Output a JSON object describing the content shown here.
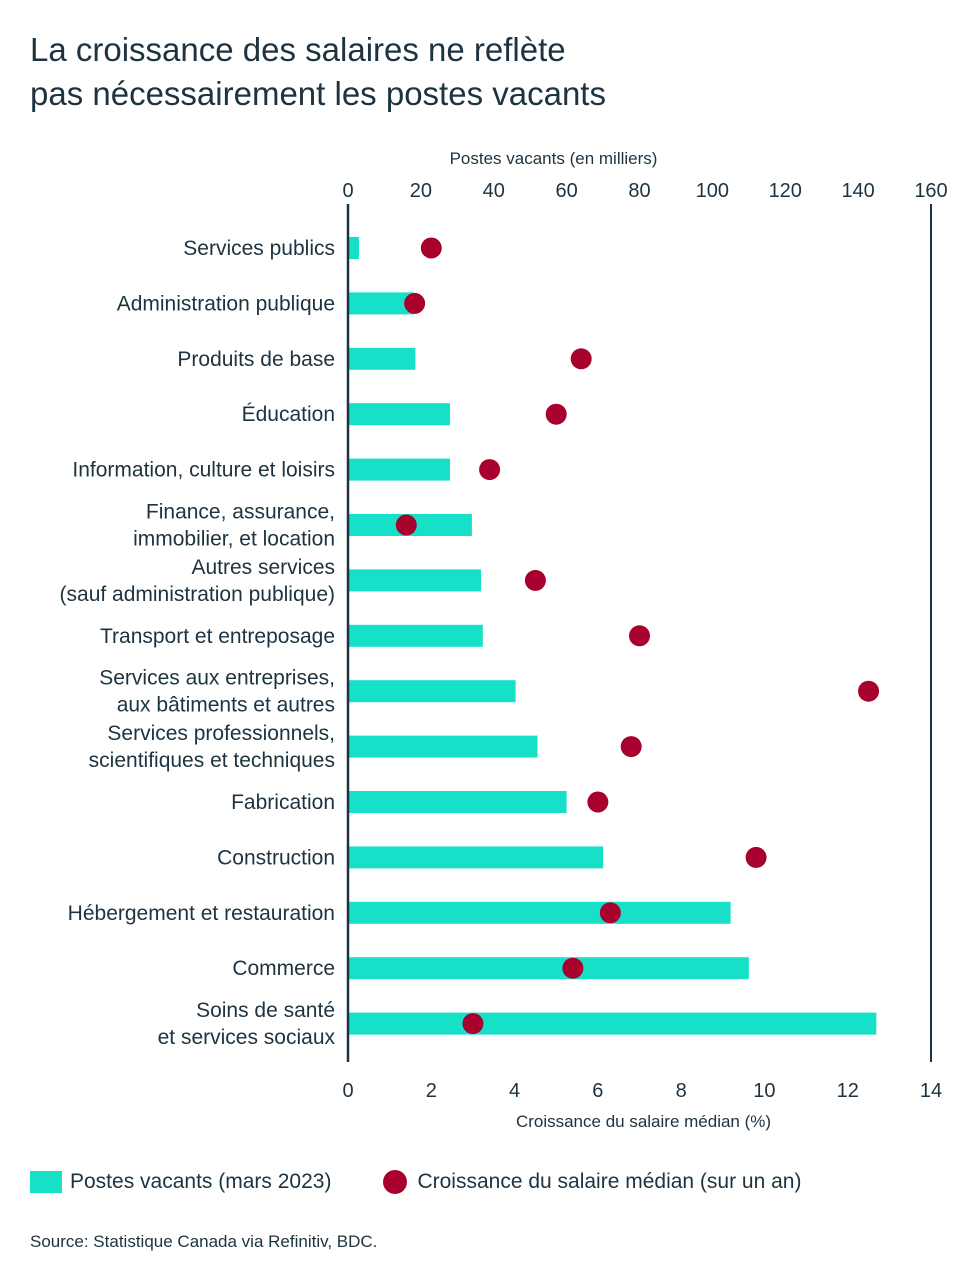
{
  "title_lines": [
    "La croissance des salaires ne reflète",
    "pas nécessairement les postes vacants"
  ],
  "source": "Source: Statistique Canada via Refinitiv, BDC.",
  "colors": {
    "bar": "#17e0c8",
    "dot": "#a8012e",
    "axis": "#1d3340",
    "text": "#1d3340"
  },
  "chart_data": {
    "type": "bar",
    "orientation": "horizontal",
    "categories": [
      [
        "Services publics"
      ],
      [
        "Administration publique"
      ],
      [
        "Produits de base"
      ],
      [
        "Éducation"
      ],
      [
        "Information, culture et loisirs"
      ],
      [
        "Finance, assurance,",
        "immobilier, et location"
      ],
      [
        "Autres services",
        "(sauf administration publique)"
      ],
      [
        "Transport et entreposage"
      ],
      [
        "Services aux entreprises,",
        "aux bâtiments et autres"
      ],
      [
        "Services professionnels,",
        "scientifiques et techniques"
      ],
      [
        "Fabrication"
      ],
      [
        "Construction"
      ],
      [
        "Hébergement et restauration"
      ],
      [
        "Commerce"
      ],
      [
        "Soins de santé",
        "et services sociaux"
      ]
    ],
    "series": [
      {
        "name": "Postes vacants (mars 2023)",
        "type": "bar",
        "axis": "top",
        "values": [
          3,
          18,
          18.5,
          28,
          28,
          34,
          36.5,
          37,
          46,
          52,
          60,
          70,
          105,
          110,
          145
        ]
      },
      {
        "name": "Croissance du salaire médian (sur un an)",
        "type": "scatter",
        "axis": "bottom",
        "values": [
          2.0,
          1.6,
          5.6,
          5.0,
          3.4,
          1.4,
          4.5,
          7.0,
          12.5,
          6.8,
          6.0,
          9.8,
          6.3,
          5.4,
          3.0
        ]
      }
    ],
    "top_axis": {
      "label": "Postes vacants (en milliers)",
      "ticks": [
        0,
        20,
        40,
        60,
        80,
        100,
        120,
        140,
        160
      ],
      "range": [
        0,
        160
      ]
    },
    "bottom_axis": {
      "label": "Croissance du salaire médian (%)",
      "ticks": [
        0,
        2,
        4,
        6,
        8,
        10,
        12,
        14
      ],
      "range": [
        0,
        14
      ]
    },
    "legend_position": "bottom-left",
    "grid": false
  }
}
